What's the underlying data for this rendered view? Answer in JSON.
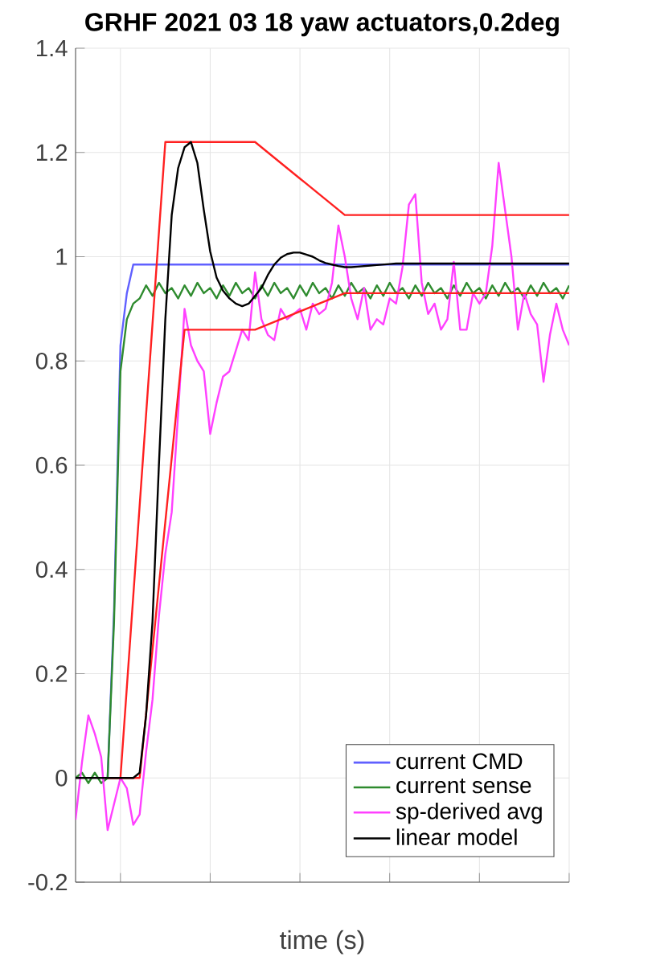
{
  "chart_data": {
    "type": "line",
    "title": "GRHF 2021 03 18 yaw actuators,0.2deg",
    "xlabel": "time (s)",
    "categories": [
      null,
      null,
      null,
      null,
      null,
      null,
      null,
      null,
      null,
      null,
      null,
      null,
      null,
      null,
      null,
      null,
      null,
      null,
      null,
      null,
      null,
      null,
      null,
      null,
      null,
      null,
      null,
      null,
      null,
      null,
      null,
      null,
      null,
      null,
      null,
      null,
      null,
      null,
      null,
      null,
      null,
      null,
      null,
      null,
      null,
      null,
      null,
      null,
      null,
      null,
      null,
      null,
      null,
      null,
      null,
      null,
      null,
      null,
      null,
      null,
      null,
      null,
      null,
      null,
      null,
      null,
      null,
      null,
      null,
      null,
      null,
      null,
      null,
      null,
      null,
      null,
      null,
      null
    ],
    "ylim": [
      -0.2,
      1.4
    ],
    "yticks": [
      -0.2,
      0,
      0.2,
      0.4,
      0.6,
      0.8,
      1,
      1.2,
      1.4
    ],
    "tick_labels": "y",
    "grid": true,
    "legend": "bottom right",
    "marker": "none",
    "line_style": "solid",
    "series": [
      {
        "name": "current CMD",
        "color": "#6060ff",
        "values": [
          null,
          null,
          null,
          null,
          null,
          0,
          0.32,
          0.83,
          0.93,
          0.985,
          0.985,
          0.985,
          0.985,
          0.985,
          0.985,
          0.985,
          0.985,
          0.985,
          0.985,
          0.985,
          0.985,
          0.985,
          0.985,
          0.985,
          0.985,
          0.985,
          0.985,
          0.985,
          0.985,
          0.985,
          0.985,
          0.985,
          0.985,
          0.985,
          0.985,
          0.985,
          0.985,
          0.985,
          0.985,
          0.985,
          0.985,
          0.985,
          0.985,
          0.985,
          0.985,
          0.985,
          0.985,
          0.985,
          0.985,
          0.985,
          0.985,
          0.985,
          0.985,
          0.985,
          0.985,
          0.985,
          0.985,
          0.985,
          0.985,
          0.985,
          0.985,
          0.985,
          0.985,
          0.985,
          0.985,
          0.985,
          0.985,
          0.985,
          0.985,
          0.985,
          0.985,
          0.985,
          0.985,
          0.985,
          0.985,
          0.985,
          0.985,
          0.985
        ]
      },
      {
        "name": "current sense",
        "color": "#2e8b2e",
        "values": [
          0,
          0.01,
          -0.01,
          0.01,
          -0.01,
          0,
          0.3,
          0.78,
          0.88,
          0.91,
          0.92,
          0.945,
          0.925,
          0.95,
          0.93,
          0.94,
          0.92,
          0.945,
          0.925,
          0.95,
          0.93,
          0.94,
          0.92,
          0.945,
          0.925,
          0.95,
          0.93,
          0.94,
          0.92,
          0.945,
          0.925,
          0.95,
          0.93,
          0.94,
          0.92,
          0.945,
          0.925,
          0.95,
          0.93,
          0.94,
          0.92,
          0.945,
          0.925,
          0.95,
          0.93,
          0.94,
          0.92,
          0.945,
          0.925,
          0.95,
          0.93,
          0.94,
          0.92,
          0.945,
          0.925,
          0.95,
          0.93,
          0.94,
          0.92,
          0.945,
          0.925,
          0.95,
          0.93,
          0.94,
          0.92,
          0.945,
          0.925,
          0.95,
          0.93,
          0.94,
          0.92,
          0.945,
          0.925,
          0.95,
          0.93,
          0.94,
          0.92,
          0.945
        ]
      },
      {
        "name": "sp-derived avg",
        "color": "#ff40ff",
        "values": [
          -0.08,
          0.03,
          0.12,
          0.085,
          0.04,
          -0.1,
          -0.05,
          0.0,
          -0.02,
          -0.09,
          -0.07,
          0.05,
          0.15,
          0.31,
          0.43,
          0.51,
          0.7,
          0.9,
          0.83,
          0.8,
          0.78,
          0.66,
          0.72,
          0.77,
          0.78,
          0.82,
          0.86,
          0.84,
          0.97,
          0.88,
          0.85,
          0.84,
          0.9,
          0.88,
          0.89,
          0.9,
          0.86,
          0.91,
          0.89,
          0.9,
          0.95,
          1.06,
          1.0,
          0.92,
          0.88,
          0.94,
          0.86,
          0.88,
          0.87,
          0.92,
          0.91,
          0.98,
          1.1,
          1.12,
          0.95,
          0.89,
          0.91,
          0.86,
          0.88,
          0.99,
          0.86,
          0.86,
          0.93,
          0.91,
          0.93,
          1.02,
          1.18,
          1.09,
          1.0,
          0.86,
          0.93,
          0.89,
          0.87,
          0.76,
          0.85,
          0.91,
          0.86,
          0.83
        ]
      },
      {
        "color": "#ff2020",
        "values": [
          null,
          null,
          null,
          null,
          null,
          0,
          0,
          0,
          0.174,
          0.349,
          0.523,
          0.697,
          0.871,
          1.046,
          1.22,
          1.22,
          1.22,
          1.22,
          1.22,
          1.22,
          1.22,
          1.22,
          1.22,
          1.22,
          1.22,
          1.22,
          1.22,
          1.22,
          1.22,
          1.21,
          1.2,
          1.19,
          1.18,
          1.17,
          1.16,
          1.15,
          1.14,
          1.13,
          1.12,
          1.11,
          1.1,
          1.09,
          1.08,
          1.08,
          1.08,
          1.08,
          1.08,
          1.08,
          1.08,
          1.08,
          1.08,
          1.08,
          1.08,
          1.08,
          1.08,
          1.08,
          1.08,
          1.08,
          1.08,
          1.08,
          1.08,
          1.08,
          1.08,
          1.08,
          1.08,
          1.08,
          1.08,
          1.08,
          1.08,
          1.08,
          1.08,
          1.08,
          1.08,
          1.08,
          1.08,
          1.08,
          1.08,
          1.08
        ]
      },
      {
        "color": "#ff2020",
        "values": [
          null,
          null,
          null,
          null,
          null,
          0,
          0,
          0,
          0,
          0,
          0,
          0.123,
          0.246,
          0.369,
          0.491,
          0.614,
          0.737,
          0.86,
          0.86,
          0.86,
          0.86,
          0.86,
          0.86,
          0.86,
          0.86,
          0.86,
          0.86,
          0.86,
          0.86,
          0.865,
          0.87,
          0.875,
          0.88,
          0.885,
          0.89,
          0.895,
          0.9,
          0.905,
          0.91,
          0.915,
          0.92,
          0.925,
          0.93,
          0.93,
          0.93,
          0.93,
          0.93,
          0.93,
          0.93,
          0.93,
          0.93,
          0.93,
          0.93,
          0.93,
          0.93,
          0.93,
          0.93,
          0.93,
          0.93,
          0.93,
          0.93,
          0.93,
          0.93,
          0.93,
          0.93,
          0.93,
          0.93,
          0.93,
          0.93,
          0.93,
          0.93,
          0.93,
          0.93,
          0.93,
          0.93,
          0.93,
          0.93,
          0.93
        ]
      },
      {
        "name": "linear model",
        "color": "#000000",
        "values": [
          0,
          0,
          0,
          0,
          0,
          0,
          0,
          0,
          0,
          0,
          0.01,
          0.12,
          0.3,
          0.6,
          0.88,
          1.08,
          1.17,
          1.21,
          1.22,
          1.18,
          1.09,
          1.01,
          0.96,
          0.935,
          0.92,
          0.91,
          0.905,
          0.91,
          0.925,
          0.94,
          0.965,
          0.985,
          0.998,
          1.005,
          1.008,
          1.008,
          1.004,
          1.0,
          0.993,
          0.988,
          0.985,
          0.982,
          0.98,
          0.98,
          0.981,
          0.982,
          0.983,
          0.984,
          0.985,
          0.986,
          0.987,
          0.987,
          0.987,
          0.987,
          0.987,
          0.987,
          0.987,
          0.987,
          0.987,
          0.987,
          0.987,
          0.987,
          0.987,
          0.987,
          0.987,
          0.987,
          0.987,
          0.987,
          0.987,
          0.987,
          0.987,
          0.987,
          0.987,
          0.987,
          0.987,
          0.987,
          0.987,
          0.987
        ]
      }
    ]
  }
}
